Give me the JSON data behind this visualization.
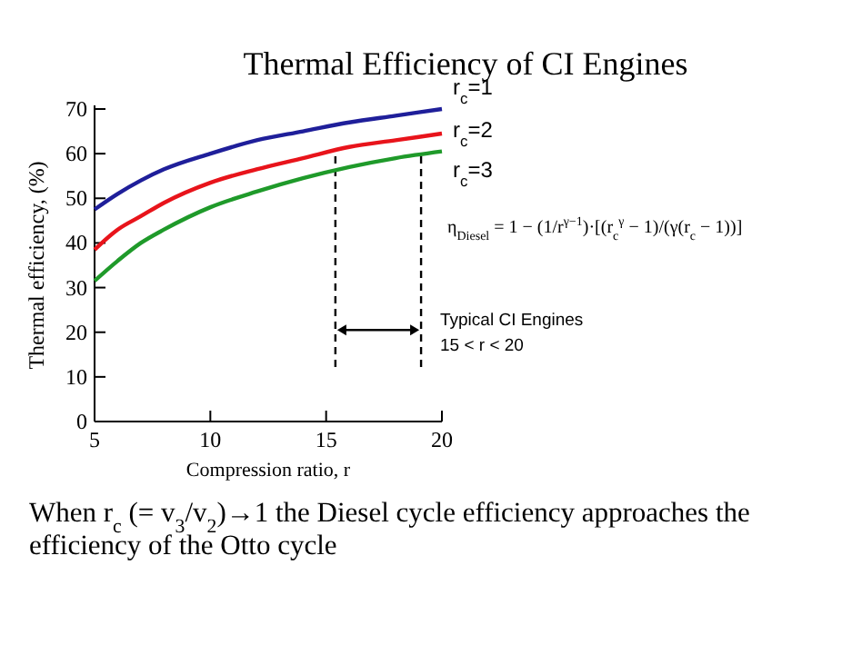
{
  "chart_data": {
    "type": "line",
    "title": "Thermal Efficiency of CI Engines",
    "xlabel": "Compression ratio, r",
    "ylabel": "Thermal efficiency, (%)",
    "x": [
      5,
      6,
      7,
      8,
      10,
      12,
      14,
      16,
      18,
      20
    ],
    "series": [
      {
        "name": "r$_{c}$=1",
        "color": "#1f1f9a",
        "values": [
          47.5,
          51,
          54,
          56.5,
          60,
          63,
          65,
          67,
          68.5,
          70
        ]
      },
      {
        "name": "r$_{c}$=2",
        "color": "#e8141b",
        "values": [
          38.5,
          43,
          46,
          49,
          53.5,
          56.5,
          59,
          61.5,
          63,
          64.5
        ]
      },
      {
        "name": "r$_{c}$=3",
        "color": "#1f9a2a",
        "values": [
          31.5,
          36,
          40,
          43,
          48,
          51.5,
          54.5,
          57,
          59,
          60.5
        ]
      }
    ],
    "xlim": [
      5,
      20
    ],
    "xticks": [
      5,
      10,
      15,
      20
    ],
    "ylim": [
      0,
      70
    ],
    "yticks": [
      0,
      10,
      20,
      30,
      40,
      50,
      60,
      70
    ],
    "grid": false,
    "marker": "none",
    "line_style": "solid",
    "ref_lines": [
      {
        "axis": "x",
        "value": 15.4,
        "line_style": "dashed",
        "color": "#000000"
      },
      {
        "axis": "x",
        "value": 19.1,
        "line_style": "dashed",
        "color": "#000000"
      }
    ],
    "annotations": [
      "Typical CI Engines\n15 < r < 20",
      "η$_{Diesel}$ = 1 − (1/r$^{γ−1}$)·[(r$_{c}$$^{γ}$ − 1)/(γ(r$_{c}$ − 1))]",
      "When r$_{c}$ (= v$_{3}$/v$_{2}$)→1 the Diesel cycle efficiency approaches the\nefficiency of the Otto cycle"
    ]
  }
}
